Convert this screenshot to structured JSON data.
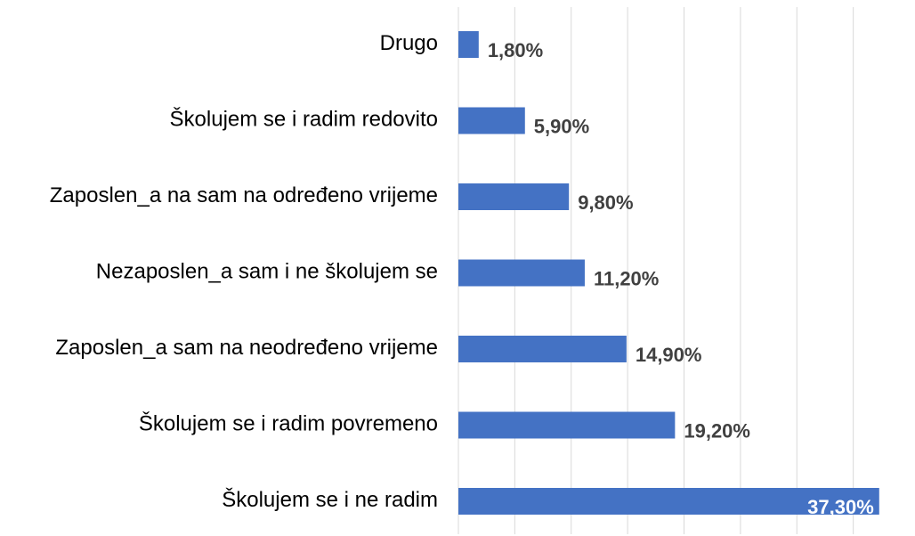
{
  "chart_data": {
    "type": "bar",
    "orientation": "horizontal",
    "categories": [
      "Drugo",
      "Školujem se i radim redovito",
      "Zaposlen_a na sam na određeno vrijeme",
      "Nezaposlen_a sam i ne školujem se",
      "Zaposlen_a sam na neodređeno vrijeme",
      "Školujem se i radim povremeno",
      "Školujem se i ne radim"
    ],
    "values": [
      1.8,
      5.9,
      9.8,
      11.2,
      14.9,
      19.2,
      37.3
    ],
    "value_labels": [
      "1,80%",
      "5,90%",
      "9,80%",
      "11,20%",
      "14,90%",
      "19,20%",
      "37,30%"
    ],
    "color": "#4472c4",
    "xlim": [
      0,
      40
    ],
    "xticks": [
      0,
      5,
      10,
      15,
      20,
      25,
      30,
      35
    ],
    "grid": true
  }
}
